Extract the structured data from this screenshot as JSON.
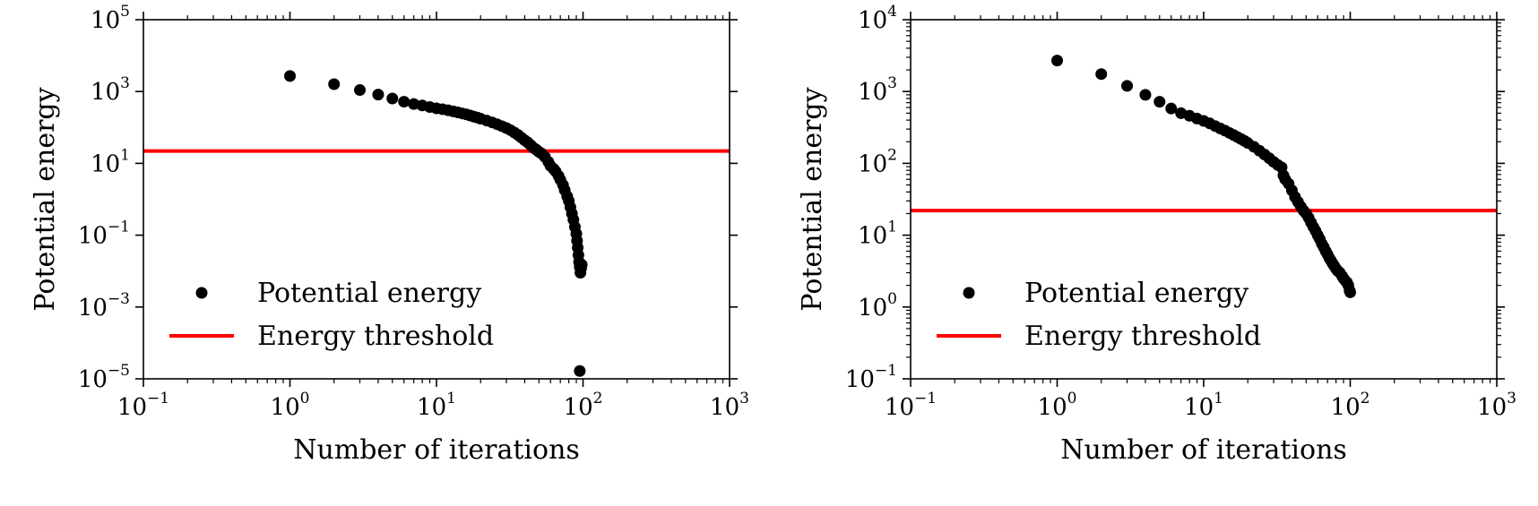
{
  "chart_data": [
    {
      "type": "scatter",
      "title": "",
      "xlabel": "Number of iterations",
      "ylabel": "Potential energy",
      "xscale": "log",
      "yscale": "log",
      "xlim": [
        0.1,
        1000
      ],
      "ylim": [
        1e-05,
        100000
      ],
      "x_tick_exponents": [
        -1,
        0,
        1,
        2,
        3
      ],
      "y_tick_exponents": [
        -5,
        -3,
        -1,
        1,
        3,
        5
      ],
      "grid": false,
      "legend_position": "lower-left",
      "legend": [
        {
          "label": "Potential energy",
          "marker": "dot",
          "color": "#000000"
        },
        {
          "label": "Energy threshold",
          "marker": "line",
          "color": "#ff0000"
        }
      ],
      "threshold": {
        "name": "Energy threshold",
        "y": 22
      },
      "series": [
        {
          "name": "Potential energy",
          "color": "#000000",
          "points": [
            [
              1,
              2700
            ],
            [
              2,
              1600
            ],
            [
              3,
              1100
            ],
            [
              4,
              820
            ],
            [
              5,
              640
            ],
            [
              6,
              520
            ],
            [
              7,
              450
            ],
            [
              8,
              410
            ],
            [
              9,
              370
            ],
            [
              10,
              340
            ],
            [
              11,
              320
            ],
            [
              12,
              300
            ],
            [
              13,
              280
            ],
            [
              14,
              262
            ],
            [
              15,
              245
            ],
            [
              16,
              230
            ],
            [
              17,
              215
            ],
            [
              18,
              200
            ],
            [
              19,
              188
            ],
            [
              20,
              175
            ],
            [
              22,
              155
            ],
            [
              24,
              138
            ],
            [
              26,
              122
            ],
            [
              28,
              108
            ],
            [
              30,
              96
            ],
            [
              32,
              84
            ],
            [
              34,
              72
            ],
            [
              36,
              62
            ],
            [
              38,
              52
            ],
            [
              40,
              44
            ],
            [
              42,
              38
            ],
            [
              44,
              32
            ],
            [
              46,
              27
            ],
            [
              48,
              24
            ],
            [
              50,
              21
            ],
            [
              52,
              19
            ],
            [
              55,
              15
            ],
            [
              58,
              11
            ],
            [
              60,
              8.5
            ],
            [
              63,
              7
            ],
            [
              65,
              6
            ],
            [
              68,
              4.5
            ],
            [
              70,
              3.5
            ],
            [
              73,
              2.5
            ],
            [
              75,
              1.8
            ],
            [
              78,
              1.2
            ],
            [
              80,
              0.9
            ],
            [
              82,
              0.6
            ],
            [
              84,
              0.4
            ],
            [
              86,
              0.27
            ],
            [
              88,
              0.17
            ],
            [
              90,
              0.11
            ],
            [
              91,
              0.07
            ],
            [
              92,
              0.045
            ],
            [
              93,
              0.028
            ],
            [
              94,
              0.018
            ],
            [
              95,
              0.013
            ],
            [
              96,
              0.009
            ],
            [
              97,
              0.012
            ],
            [
              98,
              0.015
            ],
            [
              95,
              1.65e-05
            ]
          ]
        }
      ]
    },
    {
      "type": "scatter",
      "title": "",
      "xlabel": "Number of iterations",
      "ylabel": "Potential energy",
      "xscale": "log",
      "yscale": "log",
      "xlim": [
        0.1,
        1000
      ],
      "ylim": [
        0.1,
        10000
      ],
      "x_tick_exponents": [
        -1,
        0,
        1,
        2,
        3
      ],
      "y_tick_exponents": [
        -1,
        0,
        1,
        2,
        3,
        4
      ],
      "grid": false,
      "legend_position": "lower-left",
      "legend": [
        {
          "label": "Potential energy",
          "marker": "dot",
          "color": "#000000"
        },
        {
          "label": "Energy threshold",
          "marker": "line",
          "color": "#ff0000"
        }
      ],
      "threshold": {
        "name": "Energy threshold",
        "y": 22
      },
      "series": [
        {
          "name": "Potential energy",
          "color": "#000000",
          "points": [
            [
              1,
              2700
            ],
            [
              2,
              1750
            ],
            [
              3,
              1200
            ],
            [
              4,
              900
            ],
            [
              5,
              720
            ],
            [
              6,
              580
            ],
            [
              7,
              500
            ],
            [
              8,
              460
            ],
            [
              9,
              420
            ],
            [
              10,
              390
            ],
            [
              11,
              360
            ],
            [
              12,
              330
            ],
            [
              13,
              305
            ],
            [
              14,
              285
            ],
            [
              15,
              265
            ],
            [
              16,
              248
            ],
            [
              17,
              232
            ],
            [
              18,
              218
            ],
            [
              19,
              205
            ],
            [
              20,
              192
            ],
            [
              22,
              170
            ],
            [
              24,
              150
            ],
            [
              26,
              133
            ],
            [
              28,
              118
            ],
            [
              30,
              105
            ],
            [
              32,
              95
            ],
            [
              34,
              88
            ],
            [
              35,
              68
            ],
            [
              36,
              60
            ],
            [
              38,
              52
            ],
            [
              40,
              42
            ],
            [
              42,
              34
            ],
            [
              44,
              29
            ],
            [
              46,
              25
            ],
            [
              48,
              22
            ],
            [
              50,
              20
            ],
            [
              52,
              17.5
            ],
            [
              54,
              15
            ],
            [
              56,
              13
            ],
            [
              58,
              11.5
            ],
            [
              60,
              10
            ],
            [
              62,
              8.8
            ],
            [
              64,
              7.6
            ],
            [
              66,
              6.8
            ],
            [
              68,
              6
            ],
            [
              70,
              5.4
            ],
            [
              72,
              4.8
            ],
            [
              74,
              4.4
            ],
            [
              76,
              4
            ],
            [
              78,
              3.7
            ],
            [
              80,
              3.4
            ],
            [
              82,
              3.2
            ],
            [
              85,
              3
            ],
            [
              88,
              2.7
            ],
            [
              90,
              2.5
            ],
            [
              93,
              2.3
            ],
            [
              95,
              2.2
            ],
            [
              97,
              2
            ],
            [
              99,
              1.7
            ],
            [
              100,
              1.6
            ]
          ]
        }
      ]
    }
  ]
}
